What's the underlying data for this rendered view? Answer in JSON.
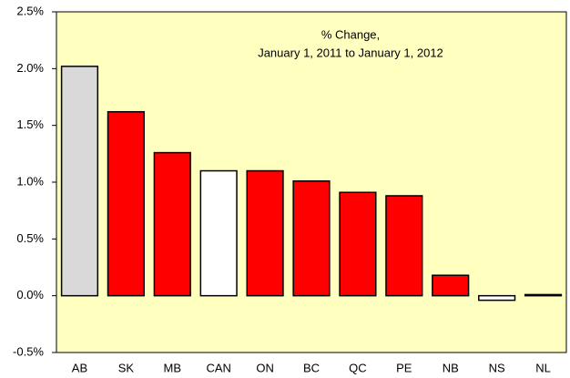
{
  "chart_data": {
    "type": "bar",
    "title": "% Change,",
    "subtitle": "January 1, 2011 to January 1, 2012",
    "categories": [
      "AB",
      "SK",
      "MB",
      "CAN",
      "ON",
      "BC",
      "QC",
      "PE",
      "NB",
      "NS",
      "NL"
    ],
    "values": [
      2.02,
      1.62,
      1.26,
      1.1,
      1.1,
      1.01,
      0.91,
      0.88,
      0.18,
      -0.04,
      0.01
    ],
    "colors": [
      "#d9d9d9",
      "#ff0000",
      "#ff0000",
      "#ffffff",
      "#ff0000",
      "#ff0000",
      "#ff0000",
      "#ff0000",
      "#ff0000",
      "#ffffff",
      "#ffffff"
    ],
    "ylim": [
      -0.5,
      2.5
    ],
    "yticks": [
      {
        "value": -0.5,
        "label": "-0.5%"
      },
      {
        "value": 0,
        "label": "0.0%"
      },
      {
        "value": 0.5,
        "label": "0.5%"
      },
      {
        "value": 1,
        "label": "1.0%"
      },
      {
        "value": 1.5,
        "label": "1.5%"
      },
      {
        "value": 2,
        "label": "2.0%"
      },
      {
        "value": 2.5,
        "label": "2.5%"
      }
    ],
    "background": "#ffffc0"
  }
}
